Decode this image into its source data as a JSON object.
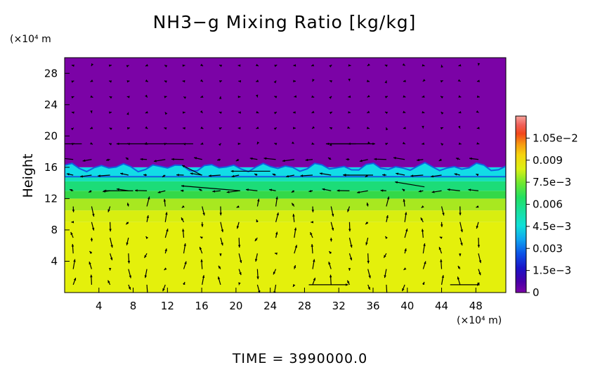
{
  "chart_data": {
    "type": "heatmap",
    "title": "NH3−g Mixing Ratio [kg/kg]",
    "x_unit": "(×10⁴ m)",
    "y_unit": "(×10⁴ m",
    "ylabel": "Height",
    "xlabel": "",
    "footer": "TIME  =  3990000.0",
    "x_ticks": [
      "4",
      "8",
      "12",
      "16",
      "20",
      "24",
      "28",
      "32",
      "36",
      "40",
      "44",
      "48"
    ],
    "x_tick_values": [
      4,
      8,
      12,
      16,
      20,
      24,
      28,
      32,
      36,
      40,
      44,
      48
    ],
    "y_ticks": [
      "4",
      "8",
      "12",
      "16",
      "20",
      "24",
      "28"
    ],
    "y_tick_values": [
      4,
      8,
      12,
      16,
      20,
      24,
      28
    ],
    "xlim": [
      0,
      51.5
    ],
    "ylim": [
      0,
      30
    ],
    "colorbar": {
      "labels": [
        "0",
        "1.5e−3",
        "0.003",
        "4.5e−3",
        "0.006",
        "7.5e−3",
        "0.009",
        "1.05e−2"
      ],
      "values": [
        0,
        0.0015,
        0.003,
        0.0045,
        0.006,
        0.0075,
        0.009,
        0.0105
      ],
      "range": [
        0,
        0.012
      ]
    },
    "layers": [
      {
        "from": 0,
        "to": 9,
        "value": 0.008
      },
      {
        "from": 9,
        "to": 10.5,
        "value": 0.0078
      },
      {
        "from": 10.5,
        "to": 12,
        "value": 0.0072
      },
      {
        "from": 12,
        "to": 13,
        "value": 0.0063
      },
      {
        "from": 13,
        "to": 14.2,
        "value": 0.0056
      },
      {
        "from": 14.2,
        "to": 15.2,
        "value": 0.0048
      },
      {
        "from": 15.2,
        "to": 16,
        "value": 0.004
      },
      {
        "from": 16,
        "to": 30,
        "value": 0.0
      }
    ],
    "interface_height": 16,
    "wind_vectors": [
      {
        "x": 2.0,
        "y": 19.0,
        "u": -3,
        "v": 0
      },
      {
        "x": 9.5,
        "y": 19.0,
        "u": -3,
        "v": 0
      },
      {
        "x": 15.0,
        "y": 19.0,
        "u": -5,
        "v": 0
      },
      {
        "x": 30.5,
        "y": 19.0,
        "u": 5,
        "v": 0
      },
      {
        "x": 34.0,
        "y": 19.0,
        "u": -3,
        "v": 0
      },
      {
        "x": 8.0,
        "y": 13.0,
        "u": -3,
        "v": 0
      },
      {
        "x": 20.5,
        "y": 13.0,
        "u": -6,
        "v": 0.5
      },
      {
        "x": 24.0,
        "y": 15.5,
        "u": -4,
        "v": 0
      },
      {
        "x": 16.0,
        "y": 15.0,
        "u": -2,
        "v": 1
      },
      {
        "x": 36.0,
        "y": 15.0,
        "u": -3,
        "v": 0
      },
      {
        "x": 42.0,
        "y": 13.5,
        "u": -3,
        "v": 0.5
      },
      {
        "x": 28.5,
        "y": 1.0,
        "u": 4,
        "v": 0
      },
      {
        "x": 45.0,
        "y": 1.0,
        "u": 3,
        "v": 0
      }
    ],
    "colors": {
      "background": "#7b03a6",
      "axes": "#000000",
      "arrow": "#000000"
    }
  }
}
